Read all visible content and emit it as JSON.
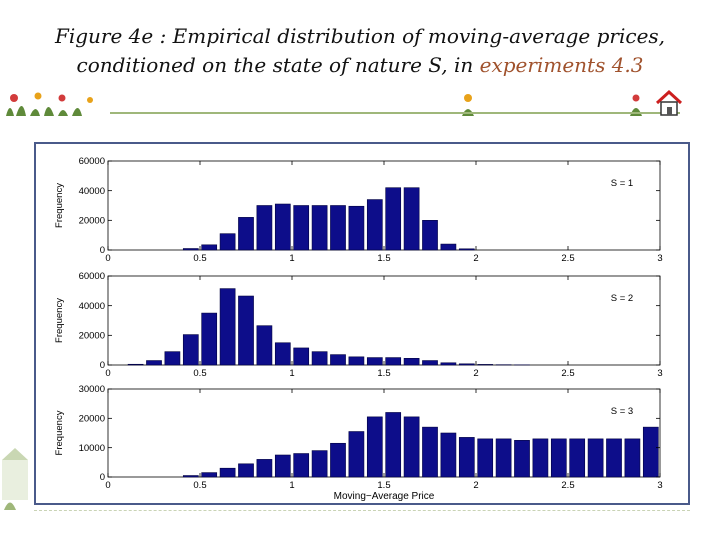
{
  "slide": {
    "title_line1": "Figure 4e : Empirical distribution of moving-average prices,",
    "title_line2_prefix": "conditioned on the state of nature S, in ",
    "title_line2_highlight": "experiments 4.3"
  },
  "colors": {
    "bar": "#0d0d8a",
    "bar_stroke": "#000040",
    "frame": "#4a5a8a",
    "highlight": "#a0522d"
  },
  "icons": {
    "home": "home-icon"
  },
  "chart_data": [
    {
      "type": "bar",
      "state_label": "S = 1",
      "ylabel": "Frequency",
      "xlabel": "",
      "xlim": [
        0,
        3
      ],
      "ylim": [
        0,
        60000
      ],
      "x_ticks": [
        "0",
        "0.5",
        "1",
        "1.5",
        "2",
        "2.5",
        "3"
      ],
      "y_ticks": [
        "0",
        "20000",
        "40000",
        "60000"
      ],
      "bin_width": 0.1,
      "x": [
        0.05,
        0.15,
        0.25,
        0.35,
        0.45,
        0.55,
        0.65,
        0.75,
        0.85,
        0.95,
        1.05,
        1.15,
        1.25,
        1.35,
        1.45,
        1.55,
        1.65,
        1.75,
        1.85,
        1.95,
        2.05,
        2.15,
        2.25,
        2.35,
        2.45,
        2.55,
        2.65,
        2.75,
        2.85,
        2.95
      ],
      "values": [
        0,
        0,
        0,
        0,
        1000,
        3500,
        11000,
        22000,
        30000,
        31000,
        30000,
        30000,
        30000,
        29500,
        34000,
        42000,
        42000,
        20000,
        4000,
        800,
        0,
        0,
        0,
        0,
        0,
        0,
        0,
        0,
        0,
        0
      ]
    },
    {
      "type": "bar",
      "state_label": "S = 2",
      "ylabel": "Frequency",
      "xlabel": "",
      "xlim": [
        0,
        3
      ],
      "ylim": [
        0,
        60000
      ],
      "x_ticks": [
        "0",
        "0.5",
        "1",
        "1.5",
        "2",
        "2.5",
        "3"
      ],
      "y_ticks": [
        "0",
        "20000",
        "40000",
        "60000"
      ],
      "bin_width": 0.1,
      "x": [
        0.05,
        0.15,
        0.25,
        0.35,
        0.45,
        0.55,
        0.65,
        0.75,
        0.85,
        0.95,
        1.05,
        1.15,
        1.25,
        1.35,
        1.45,
        1.55,
        1.65,
        1.75,
        1.85,
        1.95,
        2.05,
        2.15,
        2.25,
        2.35,
        2.45,
        2.55,
        2.65,
        2.75,
        2.85,
        2.95
      ],
      "values": [
        0,
        500,
        3000,
        9000,
        20500,
        35000,
        51500,
        46500,
        26500,
        15000,
        11500,
        9000,
        7000,
        5500,
        5000,
        5000,
        4500,
        3000,
        1500,
        800,
        400,
        200,
        100,
        0,
        0,
        0,
        0,
        0,
        0,
        0
      ]
    },
    {
      "type": "bar",
      "state_label": "S = 3",
      "ylabel": "Frequency",
      "xlabel": "Moving−Average Price",
      "xlim": [
        0,
        3
      ],
      "ylim": [
        0,
        30000
      ],
      "x_ticks": [
        "0",
        "0.5",
        "1",
        "1.5",
        "2",
        "2.5",
        "3"
      ],
      "y_ticks": [
        "0",
        "10000",
        "20000",
        "30000"
      ],
      "bin_width": 0.1,
      "x": [
        0.05,
        0.15,
        0.25,
        0.35,
        0.45,
        0.55,
        0.65,
        0.75,
        0.85,
        0.95,
        1.05,
        1.15,
        1.25,
        1.35,
        1.45,
        1.55,
        1.65,
        1.75,
        1.85,
        1.95,
        2.05,
        2.15,
        2.25,
        2.35,
        2.45,
        2.55,
        2.65,
        2.75,
        2.85,
        2.95
      ],
      "values": [
        0,
        0,
        0,
        0,
        500,
        1500,
        3000,
        4500,
        6000,
        7500,
        8000,
        9000,
        11500,
        15500,
        20500,
        22000,
        20500,
        17000,
        15000,
        13500,
        13000,
        13000,
        12500,
        13000,
        13000,
        13000,
        13000,
        13000,
        13000,
        17000
      ]
    }
  ]
}
